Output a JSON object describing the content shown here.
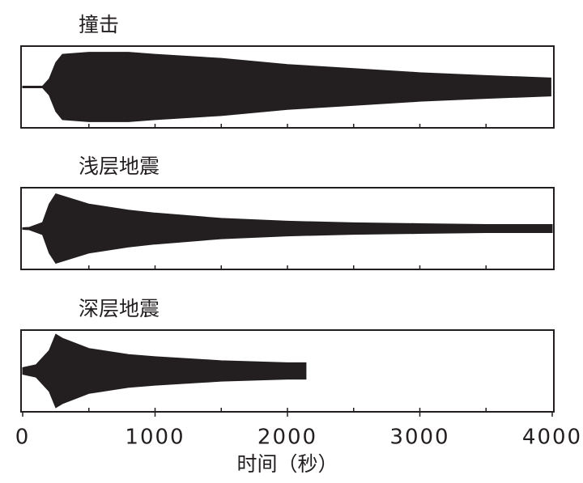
{
  "chart_data": [
    {
      "type": "area",
      "title": "撞击",
      "color": "#231f20",
      "xlim": [
        0,
        4000
      ],
      "ylim": [
        -1,
        1
      ],
      "x": [
        0,
        150,
        200,
        250,
        300,
        500,
        800,
        1000,
        1500,
        2000,
        2500,
        3000,
        3500,
        3990
      ],
      "values": [
        0.02,
        0.02,
        0.2,
        0.6,
        0.8,
        0.85,
        0.85,
        0.8,
        0.7,
        0.55,
        0.45,
        0.35,
        0.28,
        0.22
      ],
      "xminorticks": [
        500,
        1000,
        1500,
        2000,
        2500,
        3000,
        3500
      ]
    },
    {
      "type": "area",
      "title": "浅层地震",
      "color": "#231f20",
      "xlim": [
        0,
        4000
      ],
      "ylim": [
        -1,
        1
      ],
      "x": [
        0,
        50,
        150,
        200,
        250,
        300,
        500,
        800,
        1000,
        1500,
        2000,
        2500,
        3000,
        3500,
        4000
      ],
      "values": [
        0.02,
        0.03,
        0.15,
        0.6,
        0.85,
        0.8,
        0.6,
        0.45,
        0.38,
        0.25,
        0.18,
        0.14,
        0.12,
        0.1,
        0.1
      ],
      "xminorticks": [
        500,
        1000,
        1500,
        2000,
        2500,
        3000,
        3500
      ]
    },
    {
      "type": "area",
      "title": "深层地震",
      "color": "#231f20",
      "xlim": [
        0,
        4000
      ],
      "ylim": [
        -1,
        1
      ],
      "x": [
        0,
        100,
        200,
        250,
        300,
        500,
        800,
        1000,
        1500,
        2000,
        2140
      ],
      "values": [
        0.08,
        0.15,
        0.5,
        0.9,
        0.8,
        0.55,
        0.4,
        0.35,
        0.25,
        0.2,
        0.2
      ],
      "xminorticks": [
        500,
        1000,
        1500,
        2000,
        2500,
        3000,
        3500
      ],
      "xticks": [
        0,
        1000,
        2000,
        3000,
        4000
      ],
      "xlabel": "时间（秒）"
    }
  ]
}
